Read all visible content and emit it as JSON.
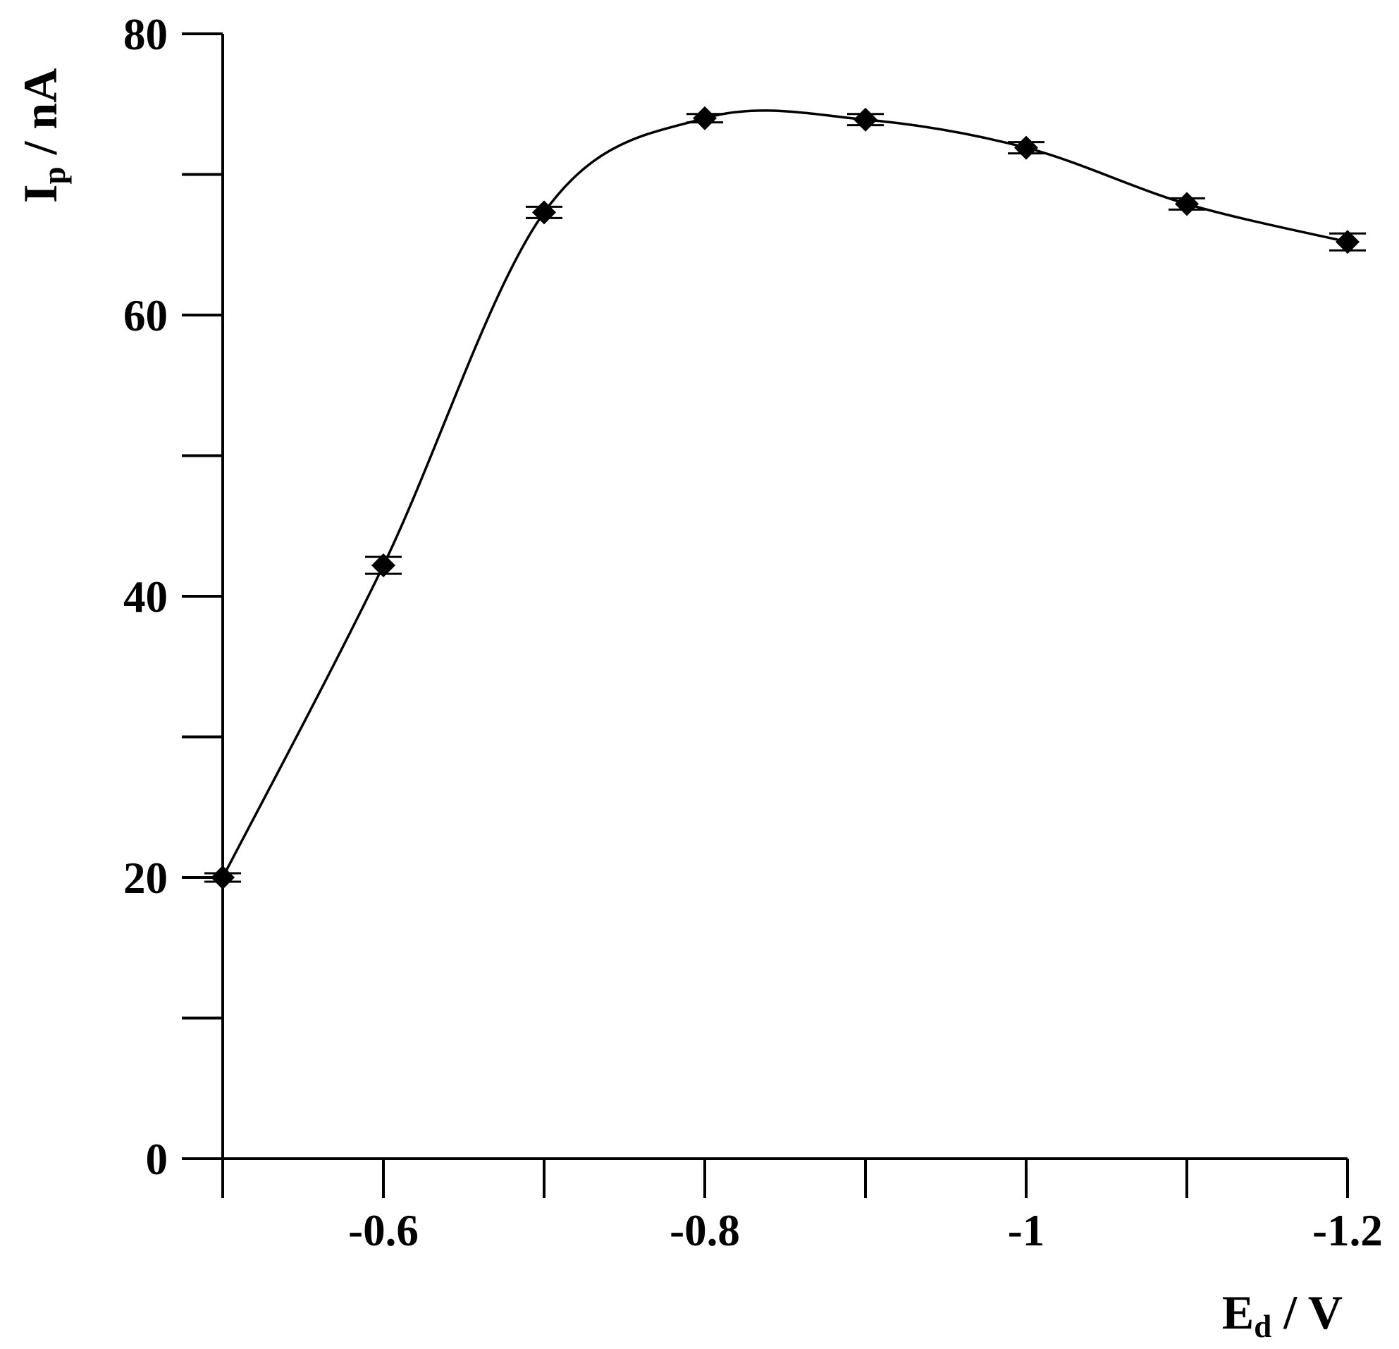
{
  "chart_data": {
    "type": "line",
    "xlabel": {
      "main": "E",
      "sub": "d",
      "rest": " / V"
    },
    "ylabel": {
      "main": "I",
      "sub": "p",
      "rest": " / nA"
    },
    "xlim": [
      -0.5,
      -1.2
    ],
    "ylim": [
      0,
      80
    ],
    "x_ticks": [
      -0.6,
      -0.8,
      -1,
      -1.2
    ],
    "x_tick_labels": [
      "-0.6",
      "-0.8",
      "-1",
      "-1.2"
    ],
    "x_minor_ticks": [
      -0.5,
      -0.7,
      -0.9,
      -1.1
    ],
    "y_ticks": [
      0,
      20,
      40,
      60,
      80
    ],
    "y_tick_labels": [
      "0",
      "20",
      "40",
      "60",
      "80"
    ],
    "y_minor_ticks": [
      10,
      30,
      50,
      70
    ],
    "grid": false,
    "marker": "diamond",
    "color": "#000000",
    "series": [
      {
        "x": [
          -0.5,
          -0.6,
          -0.7,
          -0.8,
          -0.9,
          -1.0,
          -1.1,
          -1.2
        ],
        "y": [
          20.0,
          42.2,
          67.3,
          74.0,
          73.9,
          71.9,
          67.9,
          65.2
        ],
        "error": [
          0.3,
          0.6,
          0.4,
          0.3,
          0.4,
          0.4,
          0.4,
          0.6
        ]
      }
    ]
  }
}
